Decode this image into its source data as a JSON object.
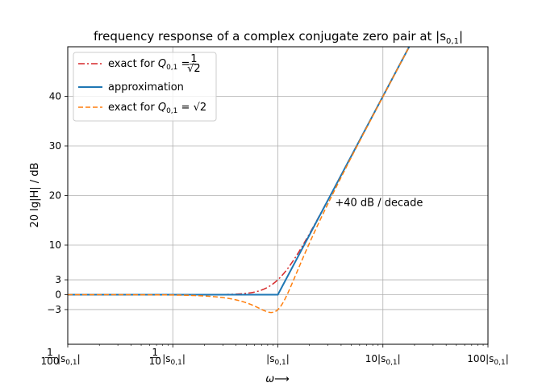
{
  "chart_data": {
    "type": "line",
    "title": "frequency response of a complex conjugate zero pair at |s",
    "title_sub": "0,1",
    "title_end": "|",
    "xlabel": "ω⟶",
    "ylabel": "20 lg|H| / dB",
    "x_scale": "log",
    "xlim": [
      0.01,
      100
    ],
    "ylim": [
      -10,
      50
    ],
    "grid": true,
    "legend_position": "top-left",
    "x_ticks": [
      {
        "value": 0.01,
        "label_main": "|s",
        "label_sub": "0,1",
        "label_end": "|",
        "prefix_num": "1",
        "prefix_den": "100"
      },
      {
        "value": 0.1,
        "label_main": "|s",
        "label_sub": "0,1",
        "label_end": "|",
        "prefix_num": "1",
        "prefix_den": "10"
      },
      {
        "value": 1,
        "label_main": "|s",
        "label_sub": "0,1",
        "label_end": "|",
        "prefix": ""
      },
      {
        "value": 10,
        "label_main": "10|s",
        "label_sub": "0,1",
        "label_end": "|"
      },
      {
        "value": 100,
        "label_main": "100|s",
        "label_sub": "0,1",
        "label_end": "|"
      }
    ],
    "y_ticks": [
      {
        "value": -3,
        "label": "−3"
      },
      {
        "value": 0,
        "label": "0"
      },
      {
        "value": 3,
        "label": "3"
      },
      {
        "value": 10,
        "label": "10"
      },
      {
        "value": 20,
        "label": "20"
      },
      {
        "value": 30,
        "label": "30"
      },
      {
        "value": 40,
        "label": "40"
      }
    ],
    "series": [
      {
        "name": "exact for Q0,1 = 1/√2",
        "legend_main": "exact for ",
        "legend_q": "Q",
        "legend_sub": "0,1",
        "legend_eq": " = ",
        "legend_num": "1",
        "legend_den": "√2",
        "color": "#d62728",
        "dash": "8,3,2,3",
        "Q": 0.7071
      },
      {
        "name": "approximation",
        "color": "#1f77b4",
        "dash": "",
        "Q": null
      },
      {
        "name": "exact for Q0,1 = √2",
        "legend_main": "exact for ",
        "legend_q": "Q",
        "legend_sub": "0,1",
        "legend_eq": " = ",
        "legend_val": "√2",
        "color": "#ff7f0e",
        "dash": "6,3",
        "Q": 1.4142
      }
    ],
    "annotations": [
      {
        "text": "+40 dB / decade",
        "x": 3.5,
        "y": 18.5
      }
    ]
  }
}
